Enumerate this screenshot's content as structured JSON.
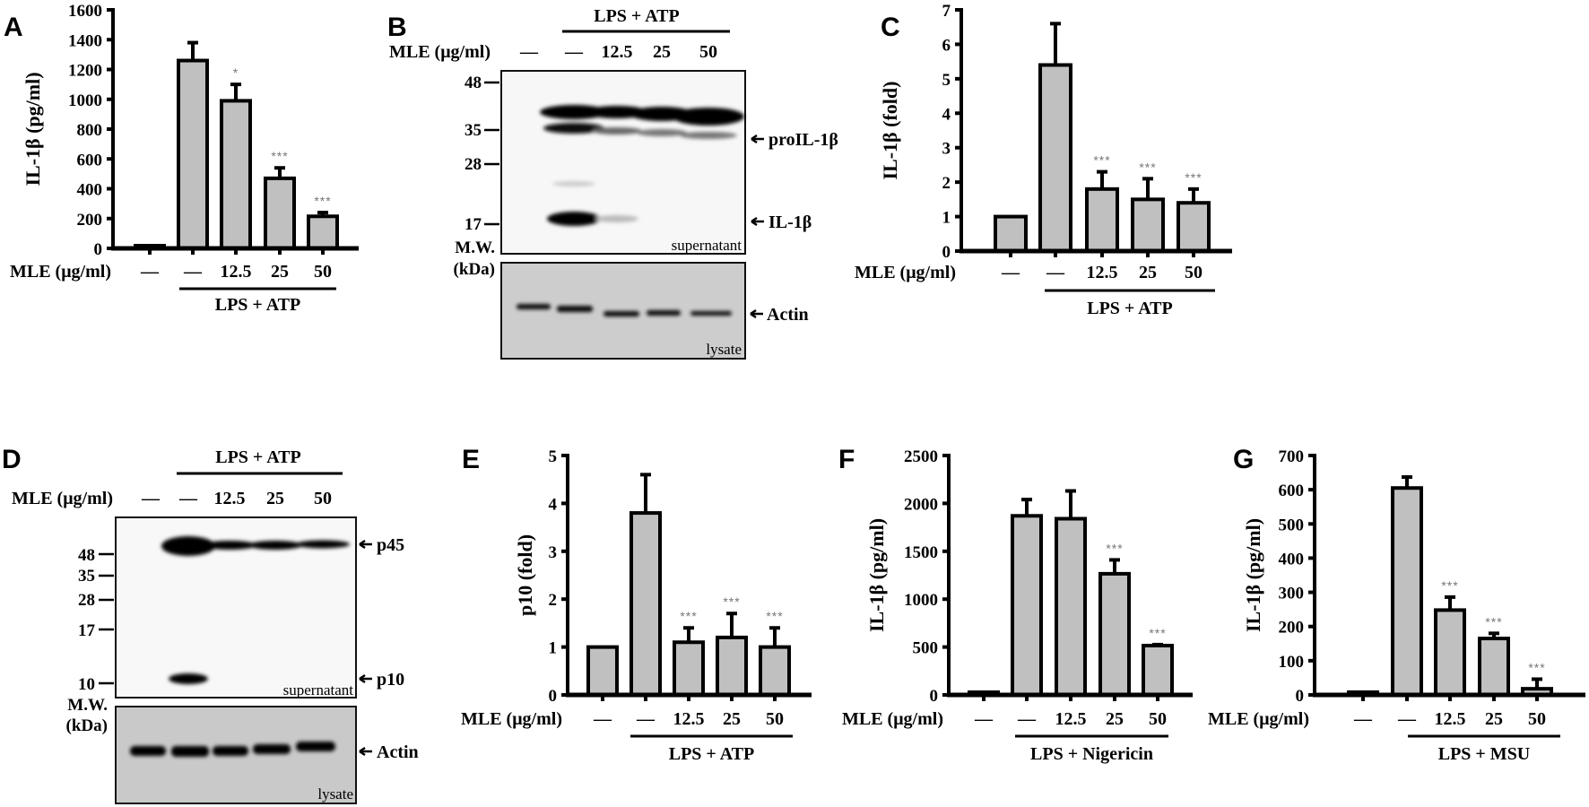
{
  "figure": {
    "x_row_label": "MLE (μg/ml)",
    "dose_labels": [
      "—",
      "—",
      "12.5",
      "25",
      "50"
    ],
    "mw_label_1": "M.W.",
    "mw_label_2": "(kDa)"
  },
  "panels": {
    "A": {
      "letter": "A"
    },
    "B": {
      "letter": "B",
      "treatment": "LPS + ATP",
      "mw_markers": [
        "48",
        "35",
        "28",
        "17"
      ],
      "band_labels": [
        "proIL-1β",
        "IL-1β",
        "Actin"
      ],
      "supernatant_label": "supernatant",
      "lysate_label": "lysate"
    },
    "C": {
      "letter": "C"
    },
    "D": {
      "letter": "D",
      "treatment": "LPS + ATP",
      "mw_markers": [
        "48",
        "35",
        "28",
        "17",
        "10"
      ],
      "band_labels": [
        "p45",
        "p10",
        "Actin"
      ],
      "supernatant_label": "supernatant",
      "lysate_label": "lysate"
    },
    "E": {
      "letter": "E"
    },
    "F": {
      "letter": "F"
    },
    "G": {
      "letter": "G"
    }
  },
  "chart_data": [
    {
      "panel": "A",
      "type": "bar",
      "ylabel": "IL-1β (pg/ml)",
      "xlabel": "MLE (μg/ml)",
      "categories": [
        "—",
        "—",
        "12.5",
        "25",
        "50"
      ],
      "group_label": "LPS + ATP",
      "values": [
        10,
        1260,
        990,
        470,
        215
      ],
      "errors": [
        0,
        120,
        110,
        70,
        25
      ],
      "significance": [
        "",
        "",
        "*",
        "***",
        "***"
      ],
      "ylim": [
        0,
        1600
      ],
      "yticks": [
        0,
        200,
        400,
        600,
        800,
        1000,
        1200,
        1400,
        1600
      ]
    },
    {
      "panel": "C",
      "type": "bar",
      "ylabel": "IL-1β (fold)",
      "xlabel": "MLE (μg/ml)",
      "categories": [
        "—",
        "—",
        "12.5",
        "25",
        "50"
      ],
      "group_label": "LPS + ATP",
      "values": [
        1.0,
        5.4,
        1.8,
        1.5,
        1.4
      ],
      "errors": [
        0,
        1.2,
        0.5,
        0.6,
        0.4
      ],
      "significance": [
        "",
        "",
        "***",
        "***",
        "***"
      ],
      "ylim": [
        0,
        7
      ],
      "yticks": [
        0,
        1,
        2,
        3,
        4,
        5,
        6,
        7
      ]
    },
    {
      "panel": "E",
      "type": "bar",
      "ylabel": "p10 (fold)",
      "xlabel": "MLE (μg/ml)",
      "categories": [
        "—",
        "—",
        "12.5",
        "25",
        "50"
      ],
      "group_label": "LPS + ATP",
      "values": [
        1.0,
        3.8,
        1.1,
        1.2,
        1.0
      ],
      "errors": [
        0,
        0.8,
        0.3,
        0.5,
        0.4
      ],
      "significance": [
        "",
        "",
        "***",
        "***",
        "***"
      ],
      "ylim": [
        0,
        5
      ],
      "yticks": [
        0,
        1,
        2,
        3,
        4,
        5
      ]
    },
    {
      "panel": "F",
      "type": "bar",
      "ylabel": "IL-1β (pg/ml)",
      "xlabel": "MLE (μg/ml)",
      "categories": [
        "—",
        "—",
        "12.5",
        "25",
        "50"
      ],
      "group_label": "LPS + Nigericin",
      "values": [
        15,
        1870,
        1840,
        1265,
        515
      ],
      "errors": [
        0,
        170,
        290,
        145,
        10
      ],
      "significance": [
        "",
        "",
        "",
        "***",
        "***"
      ],
      "ylim": [
        0,
        2500
      ],
      "yticks": [
        0,
        500,
        1000,
        1500,
        2000,
        2500
      ]
    },
    {
      "panel": "G",
      "type": "bar",
      "ylabel": "IL-1β (pg/ml)",
      "xlabel": "MLE (μg/ml)",
      "categories": [
        "—",
        "—",
        "12.5",
        "25",
        "50"
      ],
      "group_label": "LPS + MSU",
      "values": [
        8,
        605,
        248,
        165,
        18
      ],
      "errors": [
        0,
        32,
        38,
        15,
        28
      ],
      "significance": [
        "",
        "",
        "***",
        "***",
        "***"
      ],
      "ylim": [
        0,
        700
      ],
      "yticks": [
        0,
        100,
        200,
        300,
        400,
        500,
        600,
        700
      ]
    }
  ]
}
